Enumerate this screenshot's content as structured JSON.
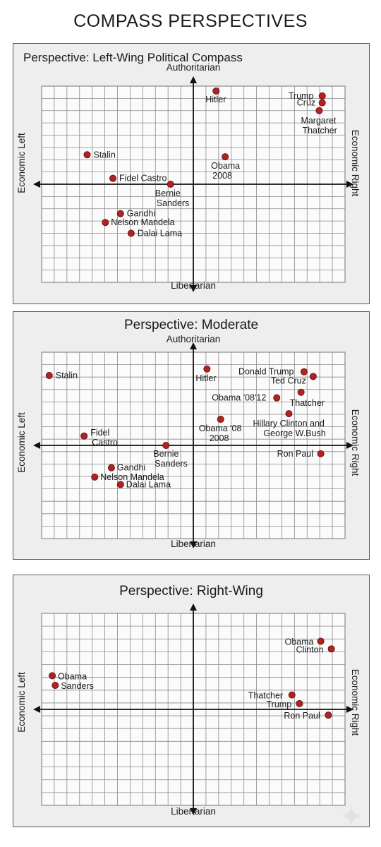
{
  "title": "COMPASS PERSPECTIVES",
  "colors": {
    "point": "#b22222",
    "grid": "#8a8a8a",
    "axis": "#111111",
    "panel_bg": "#eeeeee"
  },
  "chart_data": [
    {
      "type": "scatter",
      "title": "Perspective: Left-Wing Political Compass",
      "xlabel_left": "Economic Left",
      "xlabel_right": "Economic Right",
      "ylabel_top": "Authoritarian",
      "ylabel_bottom": "Libertarian",
      "xlim": [
        -10,
        10
      ],
      "ylim": [
        -10,
        10
      ],
      "grid": true,
      "points": [
        {
          "label": "Hitler",
          "x": 1.5,
          "y": 9.5
        },
        {
          "label": "Trump",
          "x": 8.5,
          "y": 9.0
        },
        {
          "label": "Cruz",
          "x": 8.5,
          "y": 8.3
        },
        {
          "label": "Margaret Thatcher",
          "x": 8.3,
          "y": 7.5
        },
        {
          "label": "Stalin",
          "x": -7.0,
          "y": 3.0
        },
        {
          "label": "Obama 2008",
          "x": 2.1,
          "y": 2.8
        },
        {
          "label": "Fidel Castro",
          "x": -5.3,
          "y": 0.6
        },
        {
          "label": "Bernie Sanders",
          "x": -1.5,
          "y": 0.0
        },
        {
          "label": "Gandhi",
          "x": -4.8,
          "y": -3.0
        },
        {
          "label": "Nelson Mandela",
          "x": -5.8,
          "y": -3.9
        },
        {
          "label": "Dalai Lama",
          "x": -4.1,
          "y": -5.0
        }
      ]
    },
    {
      "type": "scatter",
      "title": "Perspective: Moderate",
      "xlabel_left": "Economic Left",
      "xlabel_right": "Economic Right",
      "ylabel_top": "Authoritarian",
      "ylabel_bottom": "Libertarian",
      "xlim": [
        -10,
        10
      ],
      "ylim": [
        -10,
        10
      ],
      "grid": true,
      "points": [
        {
          "label": "Stalin",
          "x": -9.5,
          "y": 7.5
        },
        {
          "label": "Hitler",
          "x": 0.9,
          "y": 8.2
        },
        {
          "label": "Donald Trump",
          "x": 7.3,
          "y": 7.9
        },
        {
          "label": "Ted Cruz",
          "x": 7.9,
          "y": 7.4
        },
        {
          "label": "Thatcher",
          "x": 7.1,
          "y": 5.7
        },
        {
          "label": "Obama '08'12",
          "x": 5.5,
          "y": 5.1
        },
        {
          "label": "Hillary Clinton and George W.Bush",
          "x": 6.3,
          "y": 3.4
        },
        {
          "label": "Obama '08 2008",
          "x": 1.8,
          "y": 2.8
        },
        {
          "label": "Fidel Castro",
          "x": -7.2,
          "y": 1.0
        },
        {
          "label": "Bernie Sanders",
          "x": -1.8,
          "y": 0.0
        },
        {
          "label": "Ron Paul",
          "x": 8.4,
          "y": -0.9
        },
        {
          "label": "Gandhi",
          "x": -5.4,
          "y": -2.4
        },
        {
          "label": "Nelson Mandela",
          "x": -6.5,
          "y": -3.4
        },
        {
          "label": "Dalai Lama",
          "x": -4.8,
          "y": -4.2
        }
      ]
    },
    {
      "type": "scatter",
      "title": "Perspective: Right-Wing",
      "xlabel_left": "Economic Left",
      "xlabel_right": "Economic Right",
      "ylabel_top": "",
      "ylabel_bottom": "Libertarian",
      "xlim": [
        -10,
        10
      ],
      "ylim": [
        -10,
        10
      ],
      "grid": true,
      "points": [
        {
          "label": "Obama",
          "x": 8.4,
          "y": 7.1
        },
        {
          "label": "Clinton",
          "x": 9.1,
          "y": 6.3
        },
        {
          "label": "Obama",
          "x": -9.3,
          "y": 3.5
        },
        {
          "label": "Sanders",
          "x": -9.1,
          "y": 2.5
        },
        {
          "label": "Thatcher",
          "x": 6.5,
          "y": 1.5
        },
        {
          "label": "Trump",
          "x": 7.0,
          "y": 0.6
        },
        {
          "label": "Ron Paul",
          "x": 8.9,
          "y": -0.6
        }
      ]
    }
  ]
}
